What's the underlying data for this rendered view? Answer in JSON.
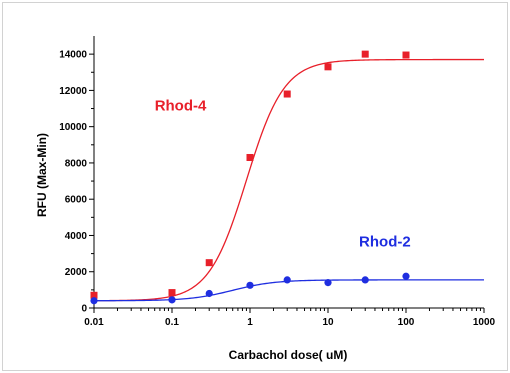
{
  "chart_data": {
    "type": "scatter",
    "xlabel": "Carbachol dose( uM)",
    "ylabel": "RFU (Max-Min)",
    "xscale": "log",
    "xlim": [
      0.01,
      1000
    ],
    "ylim": [
      0,
      15000
    ],
    "x_ticks": [
      0.01,
      0.1,
      1,
      10,
      100,
      1000
    ],
    "x_tick_labels": [
      "0.01",
      "0.1",
      "1",
      "10",
      "100",
      "1000"
    ],
    "y_ticks": [
      0,
      2000,
      4000,
      6000,
      8000,
      10000,
      12000,
      14000
    ],
    "y_tick_labels": [
      "0",
      "2000",
      "4000",
      "6000",
      "8000",
      "10000",
      "12000",
      "14000"
    ],
    "grid": false,
    "series": [
      {
        "name": "Rhod-4",
        "color": "#e8202a",
        "marker": "square",
        "x": [
          0.01,
          0.1,
          0.3,
          1,
          3,
          10,
          30,
          100
        ],
        "y": [
          700,
          850,
          2500,
          8300,
          11800,
          13300,
          14000,
          13950
        ],
        "fit": {
          "bottom": 400,
          "top": 13700,
          "ec50": 0.9,
          "hill": 1.8
        }
      },
      {
        "name": "Rhod-2",
        "color": "#1f2ee0",
        "marker": "circle",
        "x": [
          0.01,
          0.1,
          0.3,
          1,
          3,
          10,
          30,
          100
        ],
        "y": [
          400,
          450,
          800,
          1250,
          1550,
          1400,
          1550,
          1750
        ],
        "fit": {
          "bottom": 400,
          "top": 1550,
          "ec50": 0.6,
          "hill": 1.6
        }
      }
    ]
  }
}
